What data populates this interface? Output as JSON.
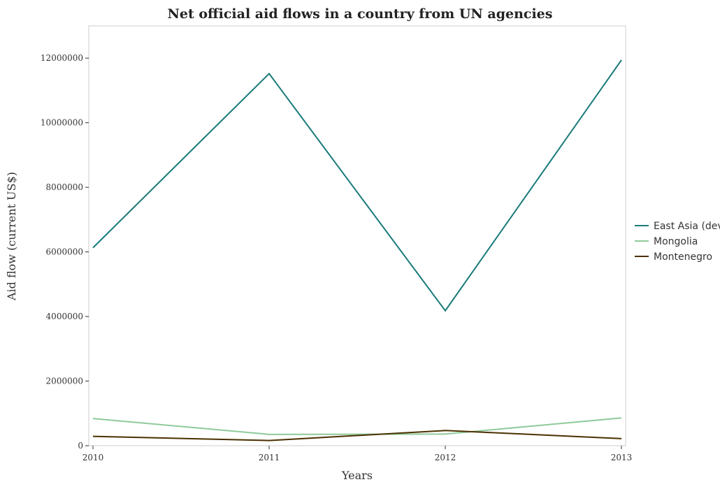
{
  "chart_data": {
    "type": "line",
    "title": "Net official aid flows in a country from UN agencies",
    "xlabel": "Years",
    "ylabel": "Aid flow (current US$)",
    "categories": [
      "2010",
      "2011",
      "2012",
      "2013"
    ],
    "ylim": [
      0,
      13000000
    ],
    "yticks": [
      0,
      2000000,
      4000000,
      6000000,
      8000000,
      10000000,
      12000000
    ],
    "ytick_labels": [
      "0",
      "2000000",
      "4000000",
      "6000000",
      "8000000",
      "10000000",
      "12000000"
    ],
    "grid": false,
    "legend_position": "right",
    "series": [
      {
        "name": "East Asia (developing only)",
        "color": "#1a7a7a",
        "values": [
          6130000,
          11520000,
          4180000,
          11940000
        ]
      },
      {
        "name": "Mongolia",
        "color": "#8fc99a",
        "values": [
          840000,
          350000,
          360000,
          860000
        ]
      },
      {
        "name": "Montenegro",
        "color": "#4a3000",
        "values": [
          290000,
          160000,
          470000,
          220000
        ]
      }
    ]
  }
}
